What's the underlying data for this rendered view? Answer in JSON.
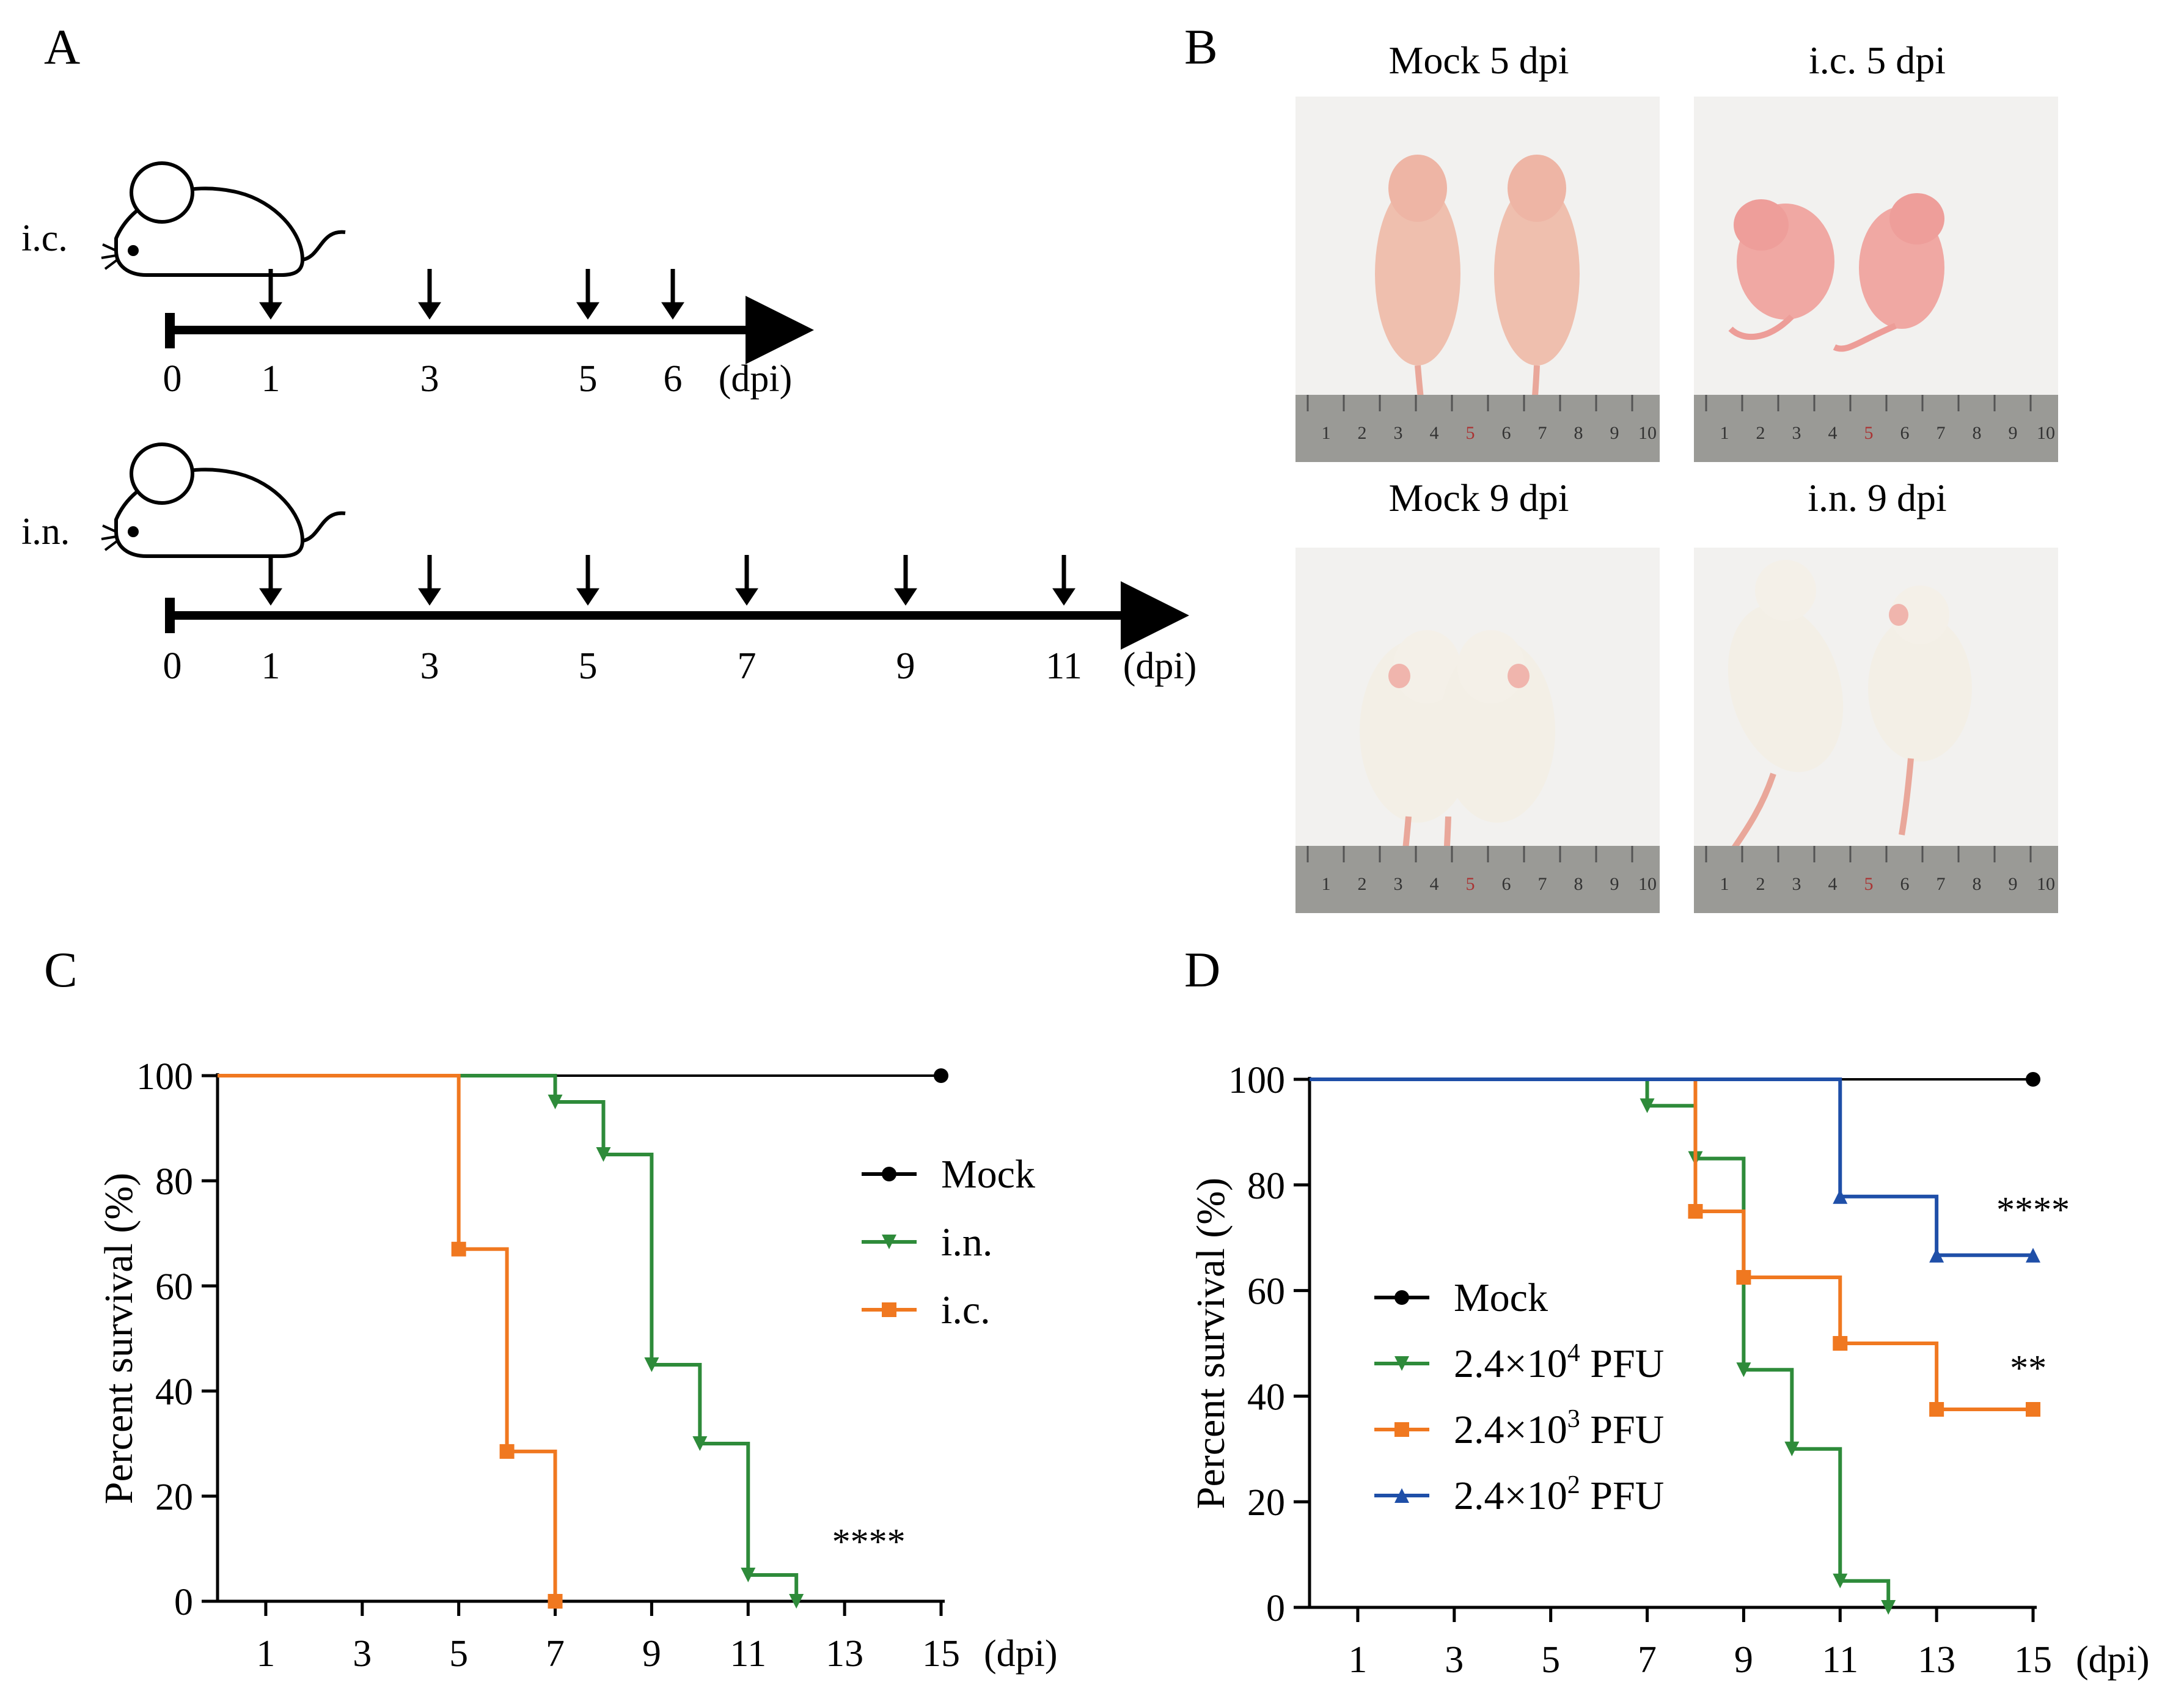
{
  "panels": {
    "a": "A",
    "b": "B",
    "c": "C",
    "d": "D"
  },
  "panel_a": {
    "routes": [
      {
        "label": "i.c.",
        "ticks": [
          "0",
          "1",
          "3",
          "5",
          "6"
        ],
        "unit": "(dpi)"
      },
      {
        "label": "i.n.",
        "ticks": [
          "0",
          "1",
          "3",
          "5",
          "7",
          "9",
          "11"
        ],
        "unit": "(dpi)"
      }
    ]
  },
  "panel_b": {
    "titles": [
      "Mock 5 dpi",
      "i.c. 5 dpi",
      "Mock 9 dpi",
      "i.n. 9 dpi"
    ],
    "ruler_numbers": [
      "1",
      "2",
      "3",
      "4",
      "5",
      "6",
      "7",
      "8",
      "9",
      "10"
    ]
  },
  "colors": {
    "mock": "#000000",
    "high": "#2e8b3a",
    "mid": "#f07820",
    "low": "#1f4fa8"
  },
  "chart_data": [
    {
      "type": "line",
      "style": "step (Kaplan-Meier)",
      "ylabel": "Percent survival (%)",
      "xlabel": "(dpi)",
      "x_ticks": [
        "1",
        "3",
        "5",
        "7",
        "9",
        "11",
        "13",
        "15"
      ],
      "y_ticks": [
        "0",
        "20",
        "40",
        "60",
        "80",
        "100"
      ],
      "xlim": [
        0,
        15
      ],
      "ylim": [
        0,
        100
      ],
      "legend_position": "right",
      "series": [
        {
          "name": "Mock",
          "color": "#000000",
          "marker": "circle",
          "x": [
            0,
            15
          ],
          "y": [
            100,
            100
          ],
          "markers_x": [
            15
          ],
          "markers_y": [
            100
          ]
        },
        {
          "name": "i.n.",
          "color": "#2e8b3a",
          "marker": "triangle-down",
          "x": [
            0,
            7,
            8,
            9,
            10,
            11,
            12
          ],
          "y": [
            100,
            95,
            85,
            45,
            30,
            5,
            0
          ],
          "markers_x": [
            7,
            8,
            9,
            10,
            11,
            12
          ],
          "markers_y": [
            95,
            85,
            45,
            30,
            5,
            0
          ]
        },
        {
          "name": "i.c.",
          "color": "#f07820",
          "marker": "square",
          "x": [
            0,
            5,
            6,
            7
          ],
          "y": [
            100,
            67,
            28.5,
            0
          ],
          "markers_x": [
            5,
            6,
            7
          ],
          "markers_y": [
            67,
            28.5,
            0
          ]
        }
      ],
      "annotations": [
        {
          "text": "****",
          "x": 13.5,
          "y": 9
        }
      ]
    },
    {
      "type": "line",
      "style": "step (Kaplan-Meier)",
      "ylabel": "Percent survival (%)",
      "xlabel": "(dpi)",
      "x_ticks": [
        "1",
        "3",
        "5",
        "7",
        "9",
        "11",
        "13",
        "15"
      ],
      "y_ticks": [
        "0",
        "20",
        "40",
        "60",
        "80",
        "100"
      ],
      "xlim": [
        0,
        15
      ],
      "ylim": [
        0,
        100
      ],
      "legend_position": "left-middle",
      "series": [
        {
          "name": "Mock",
          "color": "#000000",
          "marker": "circle",
          "x": [
            0,
            15
          ],
          "y": [
            100,
            100
          ],
          "markers_x": [
            15
          ],
          "markers_y": [
            100
          ]
        },
        {
          "name": "2.4×10⁴ PFU",
          "base": "2.4×10",
          "exp": "4",
          "suffix": " PFU",
          "color": "#2e8b3a",
          "marker": "triangle-down",
          "x": [
            0,
            7,
            8,
            9,
            10,
            11,
            12
          ],
          "y": [
            100,
            95,
            85,
            45,
            30,
            5,
            0
          ],
          "markers_x": [
            7,
            8,
            9,
            10,
            11,
            12
          ],
          "markers_y": [
            95,
            85,
            45,
            30,
            5,
            0
          ]
        },
        {
          "name": "2.4×10³ PFU",
          "base": "2.4×10",
          "exp": "3",
          "suffix": " PFU",
          "color": "#f07820",
          "marker": "square",
          "x": [
            0,
            8,
            9,
            11,
            13,
            15
          ],
          "y": [
            100,
            75,
            62.5,
            50,
            37.5,
            37.5
          ],
          "markers_x": [
            8,
            9,
            11,
            13,
            15
          ],
          "markers_y": [
            75,
            62.5,
            50,
            37.5,
            37.5
          ]
        },
        {
          "name": "2.4×10² PFU",
          "base": "2.4×10",
          "exp": "2",
          "suffix": " PFU",
          "color": "#1f4fa8",
          "marker": "triangle-up",
          "x": [
            0,
            11,
            13,
            15
          ],
          "y": [
            100,
            77.8,
            66.7,
            66.7
          ],
          "markers_x": [
            11,
            13,
            15
          ],
          "markers_y": [
            77.8,
            66.7,
            66.7
          ]
        }
      ],
      "annotations": [
        {
          "text": "****",
          "x": 15,
          "y": 73
        },
        {
          "text": "**",
          "x": 14.9,
          "y": 43
        }
      ]
    }
  ]
}
